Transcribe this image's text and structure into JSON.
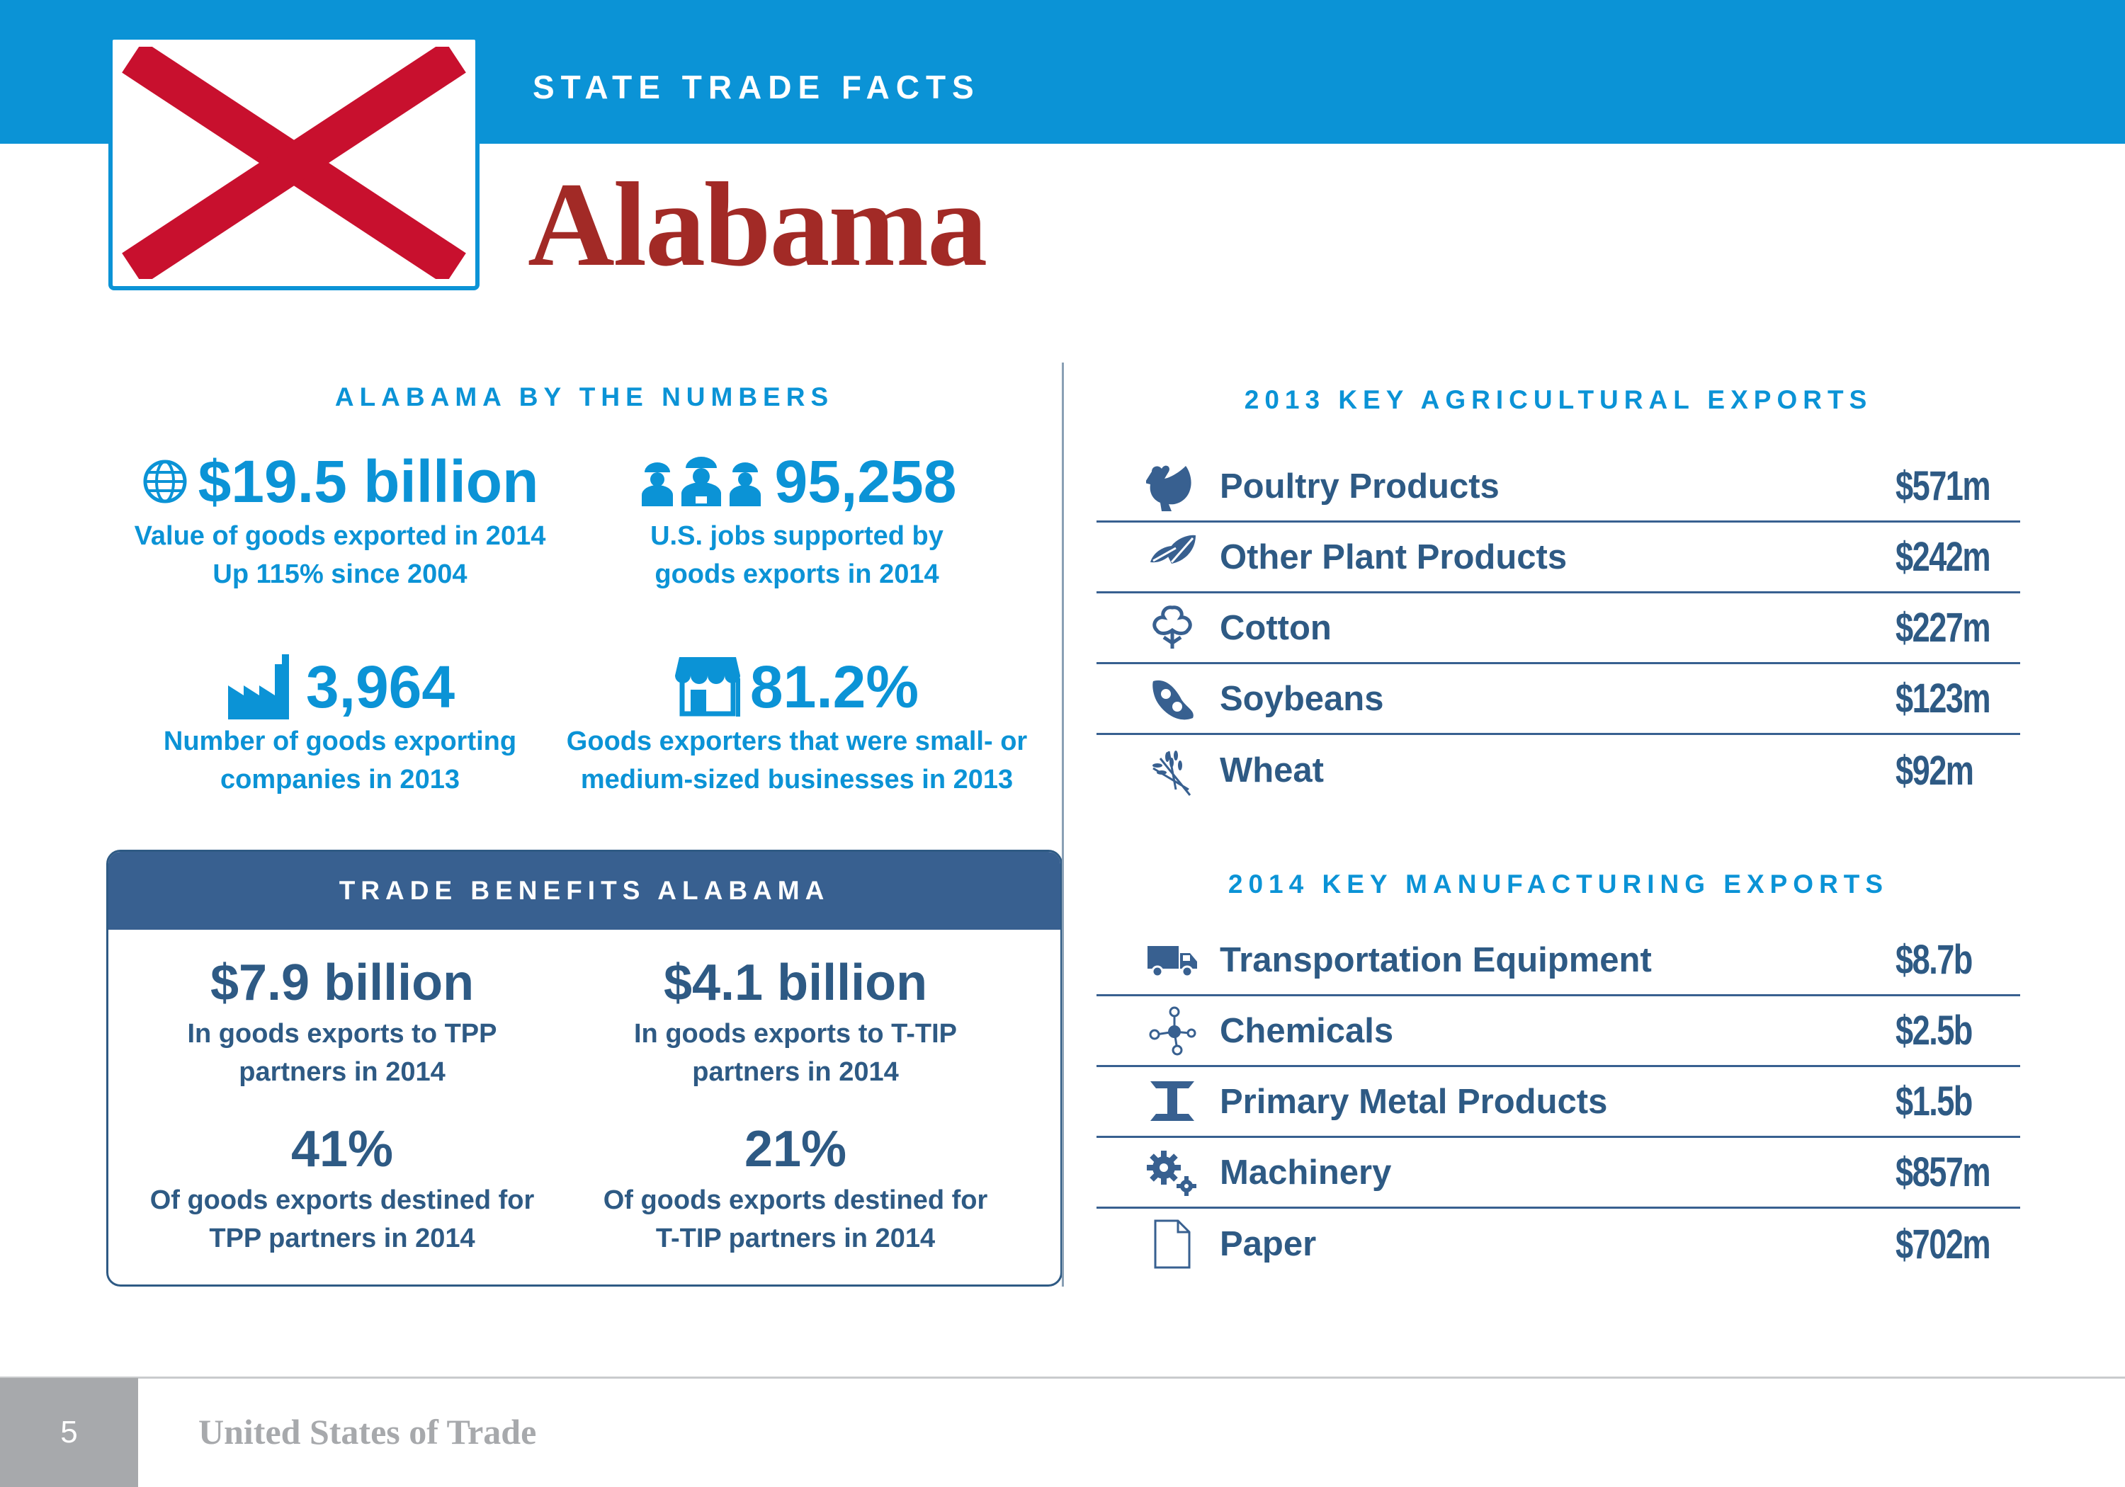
{
  "header": {
    "eyebrow": "STATE TRADE FACTS",
    "state_name": "Alabama",
    "flag_icon": "alabama-flag",
    "colors": {
      "brand_blue": "#0b93d6",
      "navy": "#386090",
      "title_red": "#a22a26",
      "flag_red": "#c8102e"
    }
  },
  "by_the_numbers": {
    "heading": "ALABAMA BY THE NUMBERS",
    "stats": [
      {
        "icon": "globe-icon",
        "value": "$19.5 billion",
        "caption_lines": [
          "Value of goods exported in 2014",
          "Up 115% since 2004"
        ]
      },
      {
        "icon": "workers-icon",
        "value": "95,258",
        "caption_lines": [
          "U.S. jobs supported by",
          "goods exports in 2014"
        ]
      },
      {
        "icon": "factory-icon",
        "value": "3,964",
        "caption_lines": [
          "Number of goods exporting",
          "companies in 2013"
        ]
      },
      {
        "icon": "storefront-icon",
        "value": "81.2%",
        "caption_lines": [
          "Goods exporters that were small- or",
          "medium-sized businesses in 2013"
        ]
      }
    ]
  },
  "trade_benefits": {
    "heading": "TRADE BENEFITS ALABAMA",
    "stats": [
      {
        "value": "$7.9 billion",
        "caption_lines": [
          "In goods exports to TPP",
          "partners in 2014"
        ]
      },
      {
        "value": "$4.1 billion",
        "caption_lines": [
          "In goods exports to T-TIP",
          "partners in 2014"
        ]
      },
      {
        "value": "41%",
        "caption_lines": [
          "Of goods exports destined for",
          "TPP partners in 2014"
        ]
      },
      {
        "value": "21%",
        "caption_lines": [
          "Of goods exports destined for",
          "T-TIP partners in 2014"
        ]
      }
    ]
  },
  "agricultural": {
    "heading": "2013 KEY AGRICULTURAL EXPORTS",
    "items": [
      {
        "icon": "chicken-icon",
        "label": "Poultry Products",
        "value": "$571m"
      },
      {
        "icon": "leaf-icon",
        "label": "Other Plant Products",
        "value": "$242m"
      },
      {
        "icon": "cotton-icon",
        "label": "Cotton",
        "value": "$227m"
      },
      {
        "icon": "soybean-icon",
        "label": "Soybeans",
        "value": "$123m"
      },
      {
        "icon": "wheat-icon",
        "label": "Wheat",
        "value": "$92m"
      }
    ]
  },
  "manufacturing": {
    "heading": "2014 KEY MANUFACTURING EXPORTS",
    "items": [
      {
        "icon": "truck-icon",
        "label": "Transportation Equipment",
        "value": "$8.7b"
      },
      {
        "icon": "molecule-icon",
        "label": "Chemicals",
        "value": "$2.5b"
      },
      {
        "icon": "steel-beam-icon",
        "label": "Primary Metal Products",
        "value": "$1.5b"
      },
      {
        "icon": "gears-icon",
        "label": "Machinery",
        "value": "$857m"
      },
      {
        "icon": "paper-icon",
        "label": "Paper",
        "value": "$702m"
      }
    ]
  },
  "footer": {
    "page_number": "5",
    "title": "United States of Trade"
  }
}
